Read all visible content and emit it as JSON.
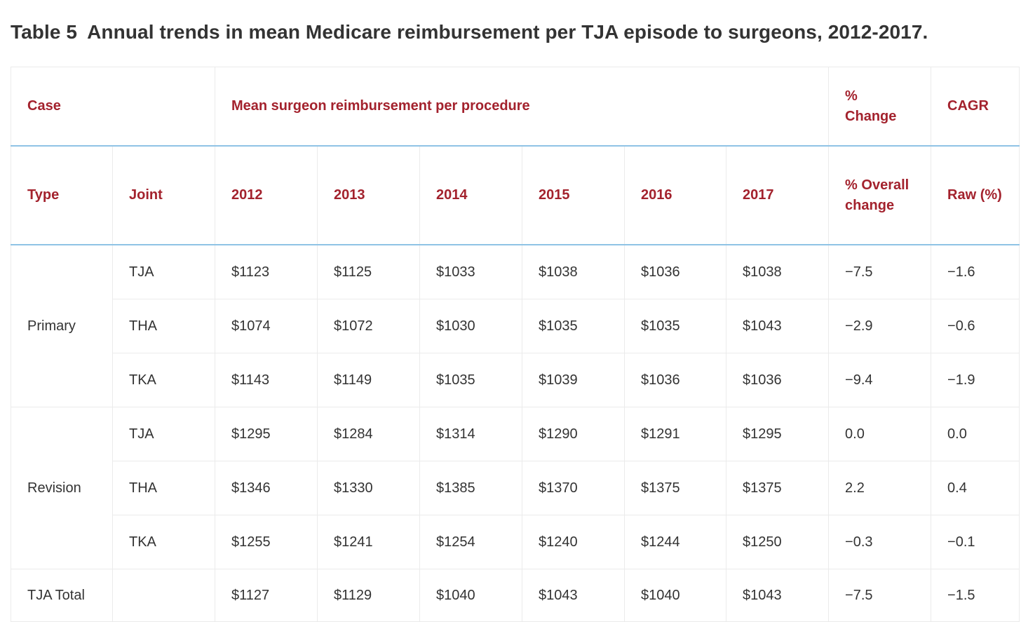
{
  "title": {
    "label": "Table 5",
    "text": "Annual trends in mean Medicare reimbursement per TJA episode to surgeons, 2012-2017."
  },
  "header": {
    "case": "Case",
    "mean": "Mean surgeon reimbursement per procedure",
    "pct_change_line1": "%",
    "pct_change_line2": "Change",
    "cagr": "CAGR",
    "type": "Type",
    "joint": "Joint",
    "years": [
      "2012",
      "2013",
      "2014",
      "2015",
      "2016",
      "2017"
    ],
    "overall_line1": "% Overall",
    "overall_line2": "change",
    "raw": "Raw (%)"
  },
  "groups": [
    {
      "type": "Primary",
      "rows": [
        {
          "joint": "TJA",
          "values": [
            "$1123",
            "$1125",
            "$1033",
            "$1038",
            "$1036",
            "$1038"
          ],
          "overall": "−7.5",
          "raw": "−1.6"
        },
        {
          "joint": "THA",
          "values": [
            "$1074",
            "$1072",
            "$1030",
            "$1035",
            "$1035",
            "$1043"
          ],
          "overall": "−2.9",
          "raw": "−0.6"
        },
        {
          "joint": "TKA",
          "values": [
            "$1143",
            "$1149",
            "$1035",
            "$1039",
            "$1036",
            "$1036"
          ],
          "overall": "−9.4",
          "raw": "−1.9"
        }
      ]
    },
    {
      "type": "Revision",
      "rows": [
        {
          "joint": "TJA",
          "values": [
            "$1295",
            "$1284",
            "$1314",
            "$1290",
            "$1291",
            "$1295"
          ],
          "overall": "0.0",
          "raw": "0.0"
        },
        {
          "joint": "THA",
          "values": [
            "$1346",
            "$1330",
            "$1385",
            "$1370",
            "$1375",
            "$1375"
          ],
          "overall": "2.2",
          "raw": "0.4"
        },
        {
          "joint": "TKA",
          "values": [
            "$1255",
            "$1241",
            "$1254",
            "$1240",
            "$1244",
            "$1250"
          ],
          "overall": "−0.3",
          "raw": "−0.1"
        }
      ]
    }
  ],
  "total": {
    "type": "TJA Total",
    "joint": "",
    "values": [
      "$1127",
      "$1129",
      "$1040",
      "$1043",
      "$1040",
      "$1043"
    ],
    "overall": "−7.5",
    "raw": "−1.5"
  },
  "colors": {
    "header_text": "#a3222d",
    "header_rule": "#8fc3e5",
    "cell_border": "#ebebeb",
    "body_text": "#333333"
  }
}
